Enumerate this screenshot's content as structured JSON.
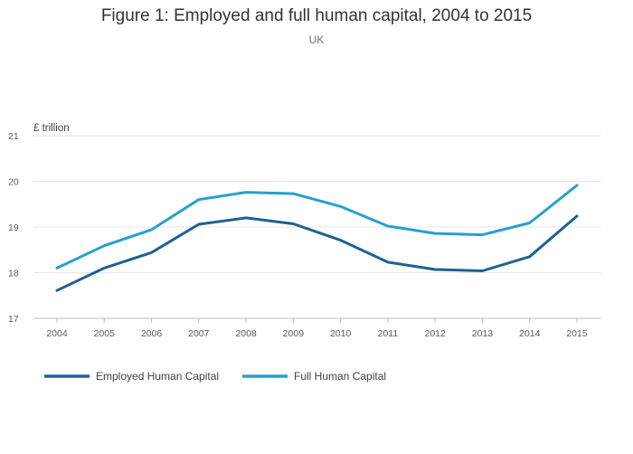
{
  "chart_data": {
    "type": "line",
    "title": "Figure 1: Employed and full human capital, 2004 to 2015",
    "subtitle": "UK",
    "ylabel": "£ trillion",
    "xlabel": "",
    "x": [
      "2004",
      "2005",
      "2006",
      "2007",
      "2008",
      "2009",
      "2010",
      "2011",
      "2012",
      "2013",
      "2014",
      "2015"
    ],
    "ylim": [
      17,
      21
    ],
    "yticks": [
      17,
      18,
      19,
      20,
      21
    ],
    "grid": true,
    "legend_position": "bottom-left",
    "series": [
      {
        "name": "Employed Human Capital",
        "color": "#206095",
        "values": [
          17.61,
          18.1,
          18.44,
          19.06,
          19.2,
          19.07,
          18.71,
          18.23,
          18.07,
          18.04,
          18.35,
          19.24
        ]
      },
      {
        "name": "Full Human Capital",
        "color": "#27a0cc",
        "values": [
          18.1,
          18.59,
          18.94,
          19.6,
          19.76,
          19.73,
          19.45,
          19.02,
          18.86,
          18.83,
          19.09,
          19.91
        ]
      }
    ]
  }
}
